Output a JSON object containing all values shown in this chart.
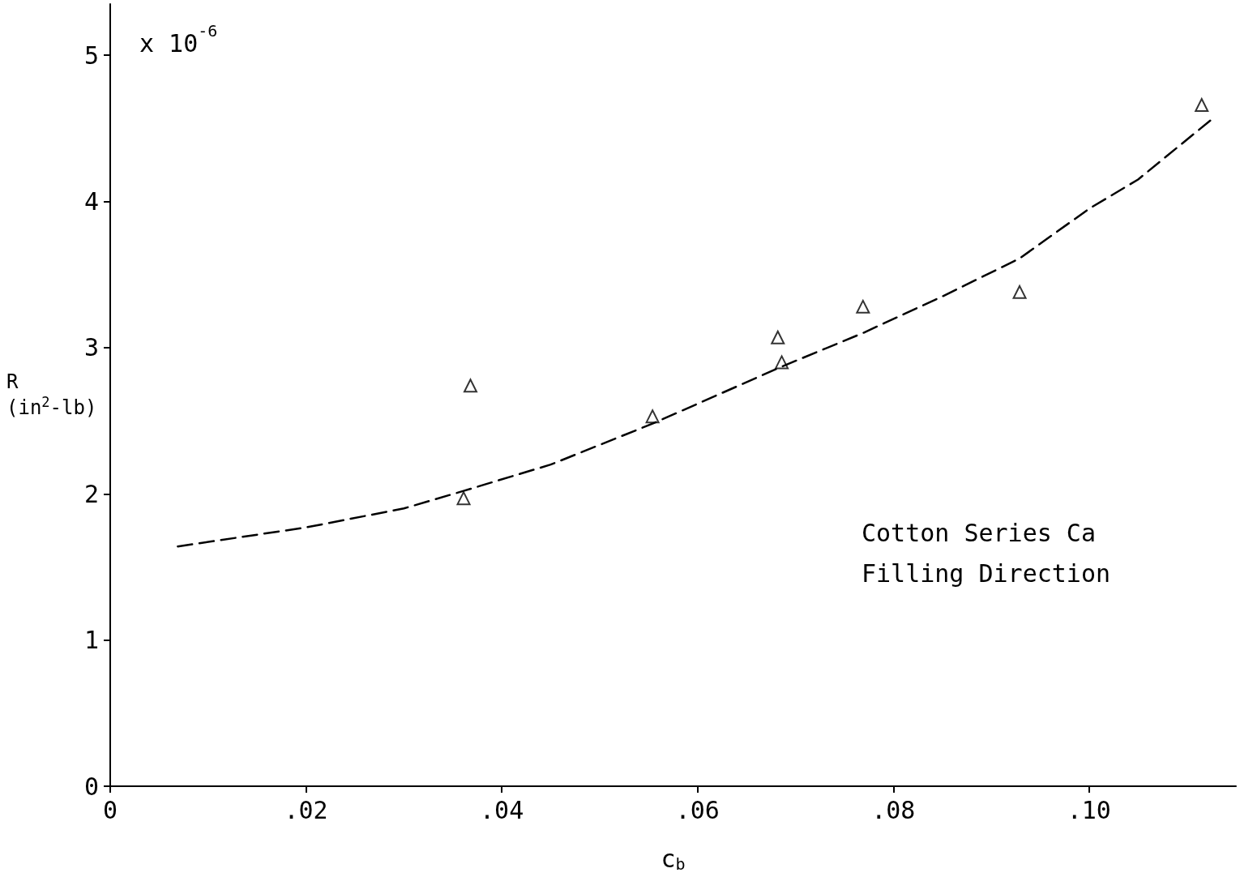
{
  "chart_data": {
    "type": "scatter",
    "xlabel": "c$_{b}$",
    "ylabel": "R\n(in$^{2}$-lb)",
    "annotations": [
      "x 10$^{-6}$",
      "Cotton Series Ca\nFilling Direction"
    ],
    "xlim": [
      0,
      0.115
    ],
    "ylim": [
      0,
      5.35
    ],
    "xticks": [
      0,
      {
        "value": 0.02,
        "label": ".02"
      },
      {
        "value": 0.04,
        "label": ".04"
      },
      {
        "value": 0.06,
        "label": ".06"
      },
      {
        "value": 0.08,
        "label": ".08"
      },
      {
        "value": 0.1,
        "label": ".10"
      }
    ],
    "yticks": [
      0,
      1,
      2,
      3,
      4,
      5
    ],
    "grid": false,
    "series": [
      {
        "type": "scatter",
        "color": "#000000",
        "marker": "triangle",
        "x": [
          0.0361,
          0.0368,
          0.0554,
          0.0682,
          0.0686,
          0.0769,
          0.0929,
          0.1115
        ],
        "values": [
          1.97,
          2.74,
          2.53,
          3.07,
          2.9,
          3.28,
          3.38,
          4.66
        ]
      },
      {
        "type": "line",
        "color": "#000000",
        "marker": "none",
        "line_style": "dashed",
        "x": [
          0.0069,
          0.02,
          0.03,
          0.0361,
          0.045,
          0.0554,
          0.0686,
          0.0769,
          0.085,
          0.0929,
          0.1,
          0.105,
          0.1125
        ],
        "values": [
          1.64,
          1.77,
          1.9,
          2.02,
          2.2,
          2.48,
          2.87,
          3.1,
          3.35,
          3.61,
          3.95,
          4.15,
          4.56
        ]
      }
    ]
  }
}
